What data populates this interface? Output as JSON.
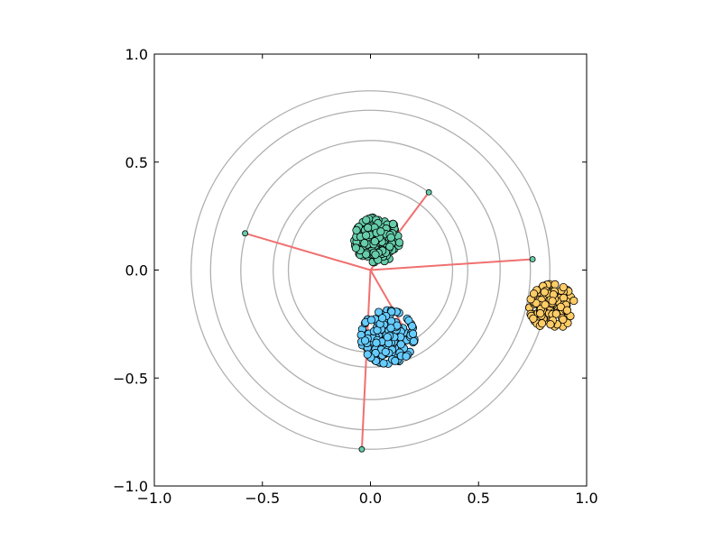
{
  "chart_data": {
    "type": "scatter",
    "title": "",
    "xlabel": "",
    "ylabel": "",
    "xlim": [
      -1.0,
      1.0
    ],
    "ylim": [
      -1.0,
      1.0
    ],
    "grid": false,
    "xticks": [
      -1.0,
      -0.5,
      0.0,
      0.5,
      1.0
    ],
    "yticks": [
      -1.0,
      -0.5,
      0.0,
      0.5,
      1.0
    ],
    "xtick_labels": [
      "−1.0",
      "−0.5",
      "0.0",
      "0.5",
      "1.0"
    ],
    "ytick_labels": [
      "−1.0",
      "−0.5",
      "0.0",
      "0.5",
      "1.0"
    ],
    "circles": {
      "center": [
        0.0,
        0.0
      ],
      "radii": [
        0.38,
        0.45,
        0.6,
        0.74,
        0.83
      ],
      "color": "#b0b0b0"
    },
    "spokes": {
      "origin": [
        0.0,
        0.0
      ],
      "color": "#f07070",
      "endpoints": [
        {
          "x": 0.27,
          "y": 0.36
        },
        {
          "x": -0.58,
          "y": 0.17
        },
        {
          "x": 0.75,
          "y": 0.05
        },
        {
          "x": -0.04,
          "y": -0.83
        },
        {
          "x": 0.19,
          "y": -0.33
        }
      ]
    },
    "series": [
      {
        "color": "#66cdaa",
        "center": [
          0.03,
          0.14
        ],
        "spread": [
          0.055,
          0.055
        ],
        "count": 160
      },
      {
        "color": "#66ccff",
        "center": [
          0.08,
          -0.31
        ],
        "spread": [
          0.065,
          0.06
        ],
        "count": 170
      },
      {
        "color": "#ffcc66",
        "center": [
          0.84,
          -0.17
        ],
        "spread": [
          0.055,
          0.055
        ],
        "count": 150
      }
    ],
    "endpoint_marker_color": "#66cdaa"
  }
}
